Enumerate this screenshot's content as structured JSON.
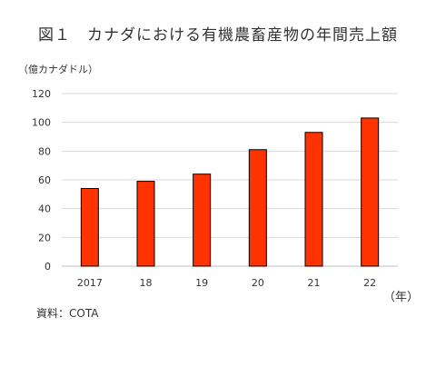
{
  "chart_data": {
    "type": "bar",
    "title": "図１　カナダにおける有機農畜産物の年間売上額",
    "ylabel": "（億カナダドル）",
    "xlabel": "（年）",
    "categories": [
      "2017",
      "18",
      "19",
      "20",
      "21",
      "22"
    ],
    "values": [
      54,
      59,
      64,
      81,
      93,
      103
    ],
    "ylim": [
      0,
      120
    ],
    "yticks": [
      "0",
      "20",
      "40",
      "60",
      "80",
      "100",
      "120"
    ],
    "grid": true,
    "legend": "none",
    "bar_color": "#ff3300",
    "bar_edge_color": "#000000",
    "grid_color": "#d9d9d9"
  },
  "source_text": "資料：COTA"
}
